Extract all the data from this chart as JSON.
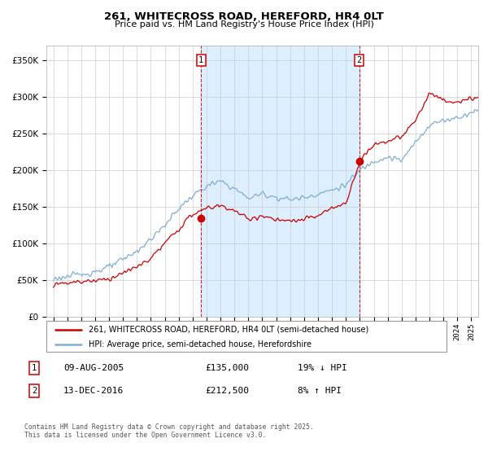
{
  "title": "261, WHITECROSS ROAD, HEREFORD, HR4 0LT",
  "subtitle": "Price paid vs. HM Land Registry's House Price Index (HPI)",
  "legend_line1": "261, WHITECROSS ROAD, HEREFORD, HR4 0LT (semi-detached house)",
  "legend_line2": "HPI: Average price, semi-detached house, Herefordshire",
  "footer": "Contains HM Land Registry data © Crown copyright and database right 2025.\nThis data is licensed under the Open Government Licence v3.0.",
  "sale1_date": "09-AUG-2005",
  "sale1_price": 135000,
  "sale1_hpi": "19% ↓ HPI",
  "sale2_date": "13-DEC-2016",
  "sale2_price": 212500,
  "sale2_hpi": "8% ↑ HPI",
  "red_color": "#cc0000",
  "blue_color": "#7eaed4",
  "shaded_color": "#ddeeff",
  "grid_color": "#cccccc",
  "background_color": "#ffffff",
  "ylim": [
    0,
    370000
  ],
  "xlim_start": 1994.5,
  "xlim_end": 2025.5,
  "sale1_x": 2005.61,
  "sale2_x": 2016.96
}
